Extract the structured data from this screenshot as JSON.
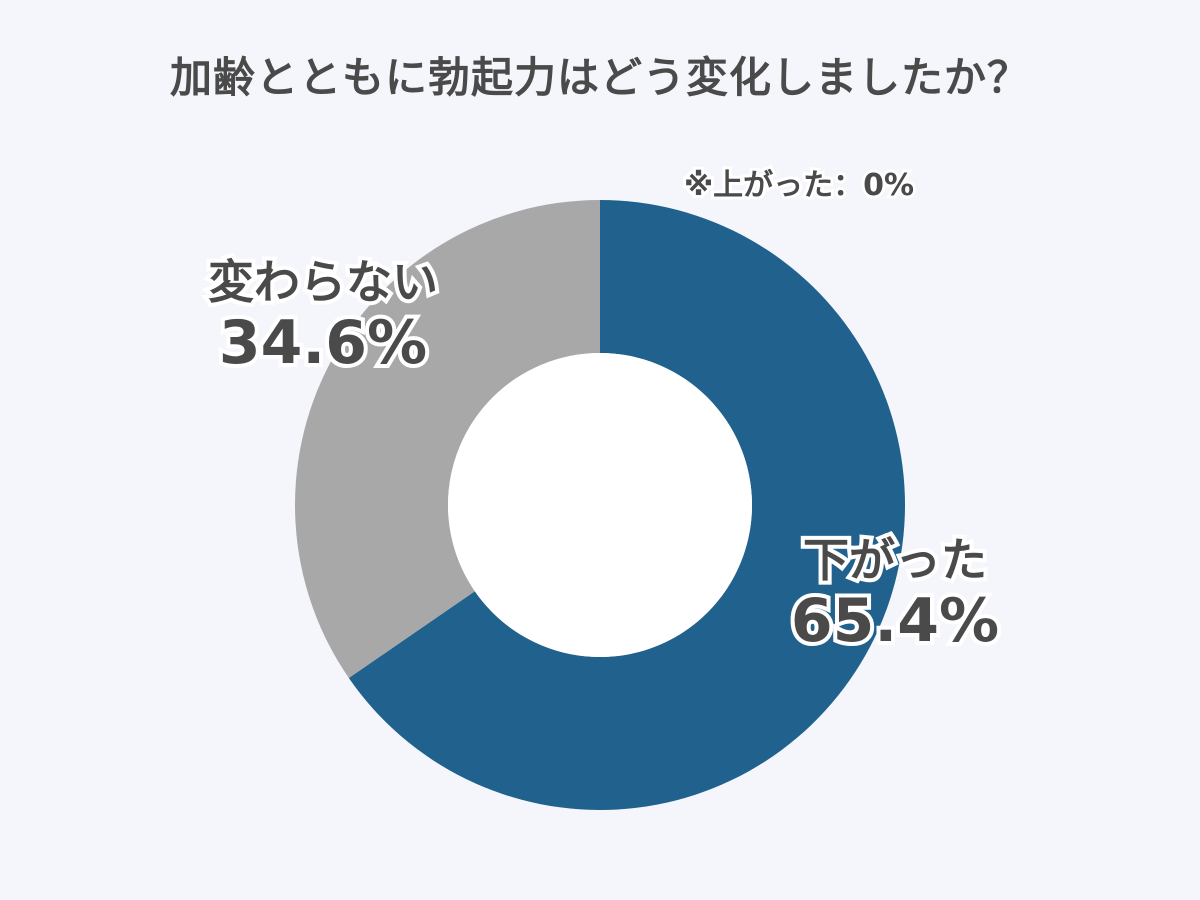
{
  "chart_data": {
    "type": "pie",
    "title": "加齢とともに勃起力はどう変化しましたか？",
    "categories": [
      "下がった",
      "変わらない",
      "上がった"
    ],
    "values": [
      65.4,
      34.6,
      0
    ],
    "value_labels": [
      "65.4%",
      "34.6%",
      "0%"
    ],
    "colors": [
      "#20628d",
      "#a8a8a8",
      "#8ab4d6"
    ],
    "donut": true,
    "note": "※上がった：0%"
  }
}
